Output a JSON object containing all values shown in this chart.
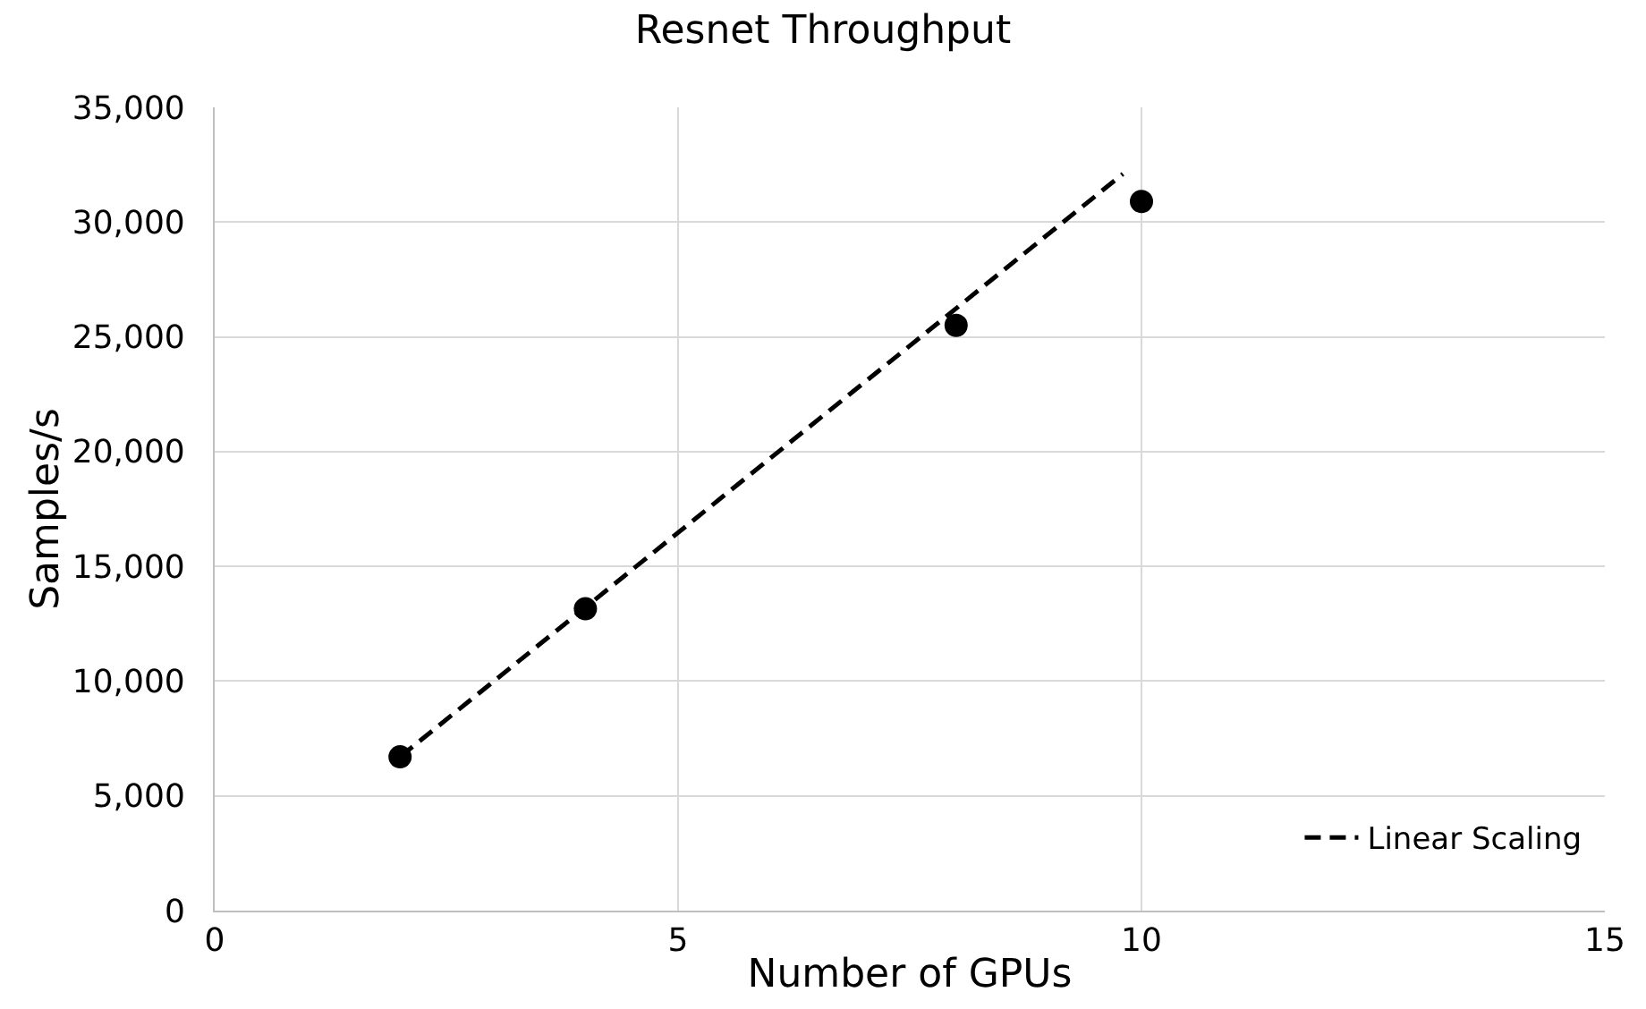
{
  "chart_data": {
    "type": "scatter",
    "title": "Resnet Throughput",
    "xlabel": "Number of GPUs",
    "ylabel": "Samples/s",
    "xlim": [
      0,
      15
    ],
    "xticks": [
      0,
      5,
      10,
      15
    ],
    "ylim": [
      0,
      35000
    ],
    "yticks": [
      {
        "value": 0,
        "label": "0"
      },
      {
        "value": 5000,
        "label": "5,000"
      },
      {
        "value": 10000,
        "label": "10,000"
      },
      {
        "value": 15000,
        "label": "15,000"
      },
      {
        "value": 20000,
        "label": "20,000"
      },
      {
        "value": 25000,
        "label": "25,000"
      },
      {
        "value": 30000,
        "label": "30,000"
      },
      {
        "value": 35000,
        "label": "35,000"
      }
    ],
    "grid": true,
    "legend": "bottom right",
    "series": [
      {
        "name": "Linear Scaling",
        "type": "line",
        "line_style": "dashed",
        "marker": "none",
        "color": "#000000",
        "x": [
          2,
          9.8
        ],
        "values": [
          6700,
          32100
        ]
      },
      {
        "marker": "circle",
        "color": "#000000",
        "x": [
          2,
          4,
          8,
          10
        ],
        "values": [
          6700,
          13150,
          25500,
          30900
        ]
      }
    ]
  }
}
